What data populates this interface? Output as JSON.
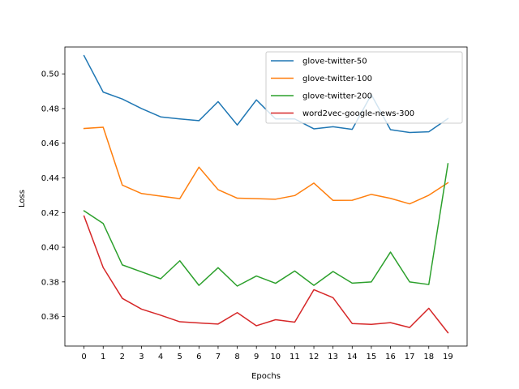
{
  "chart_data": {
    "type": "line",
    "title": "",
    "xlabel": "Epochs",
    "ylabel": "Loss",
    "x": [
      0,
      1,
      2,
      3,
      4,
      5,
      6,
      7,
      8,
      9,
      10,
      11,
      12,
      13,
      14,
      15,
      16,
      17,
      18,
      19
    ],
    "xlim": [
      -1,
      20
    ],
    "ylim": [
      0.343,
      0.5155
    ],
    "yticks": [
      0.36,
      0.38,
      0.4,
      0.42,
      0.44,
      0.46,
      0.48,
      0.5
    ],
    "ytick_labels": [
      "0.36",
      "0.38",
      "0.40",
      "0.42",
      "0.44",
      "0.46",
      "0.48",
      "0.50"
    ],
    "grid": false,
    "legend_position": "top-right",
    "series": [
      {
        "name": "glove-twitter-50",
        "color": "#1f77b4",
        "values": [
          0.5105,
          0.4895,
          0.4855,
          0.48,
          0.4752,
          0.474,
          0.473,
          0.484,
          0.4705,
          0.485,
          0.474,
          0.474,
          0.4683,
          0.4695,
          0.468,
          0.488,
          0.4678,
          0.4662,
          0.4666,
          0.4742
        ]
      },
      {
        "name": "glove-twitter-100",
        "color": "#ff7f0e",
        "values": [
          0.4685,
          0.4692,
          0.4358,
          0.431,
          0.4295,
          0.428,
          0.4462,
          0.4332,
          0.4283,
          0.428,
          0.4277,
          0.4298,
          0.437,
          0.427,
          0.4271,
          0.4305,
          0.4282,
          0.425,
          0.43,
          0.4372
        ]
      },
      {
        "name": "glove-twitter-200",
        "color": "#2ca02c",
        "values": [
          0.421,
          0.4137,
          0.3898,
          0.3858,
          0.3818,
          0.3922,
          0.378,
          0.3882,
          0.3776,
          0.3834,
          0.3792,
          0.3863,
          0.378,
          0.386,
          0.3793,
          0.38,
          0.3972,
          0.38,
          0.3785,
          0.4482
        ]
      },
      {
        "name": "word2vec-google-news-300",
        "color": "#d62728",
        "values": [
          0.418,
          0.3883,
          0.3705,
          0.3643,
          0.3608,
          0.357,
          0.3563,
          0.3557,
          0.3623,
          0.3547,
          0.3582,
          0.3568,
          0.3755,
          0.3709,
          0.356,
          0.3555,
          0.3565,
          0.3537,
          0.3648,
          0.3507
        ]
      }
    ]
  }
}
